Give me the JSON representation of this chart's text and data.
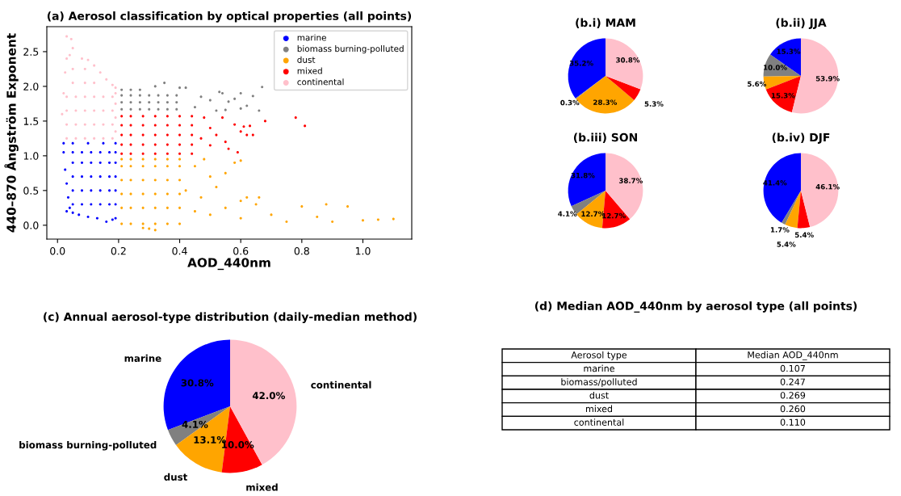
{
  "chart_data": [
    {
      "type": "scatter",
      "title": "(a) Aerosol classification by optical properties (all points)",
      "xlabel": "AOD_440nm",
      "ylabel": "440–870 Ångström Exponent",
      "xlim": [
        -0.035,
        1.16
      ],
      "ylim": [
        -0.2,
        2.86
      ],
      "xticks": [
        {
          "value": 0,
          "label": "0.0"
        },
        0.2,
        0.4,
        0.6,
        0.8,
        {
          "value": 1,
          "label": "1.0"
        }
      ],
      "yticks": [
        {
          "value": 0,
          "label": "0.0"
        },
        0.5,
        {
          "value": 1,
          "label": "1.0"
        },
        1.5,
        {
          "value": 2,
          "label": "2.0"
        },
        2.5
      ],
      "legend": "top right",
      "marker": "circle",
      "grid": false,
      "series": [
        {
          "name": "marine",
          "color": "#0000ff",
          "x": [
            0.03,
            0.05,
            0.07,
            0.1,
            0.13,
            0.16,
            0.18,
            0.19,
            0.02,
            0.025,
            0.03,
            0.035,
            0.04,
            0.02,
            0.05,
            0.1,
            0.15,
            0.19,
            0.05,
            0.05,
            0.05,
            0.05,
            0.05,
            0.08,
            0.08,
            0.08,
            0.08,
            0.08,
            0.11,
            0.11,
            0.11,
            0.11,
            0.11,
            0.14,
            0.14,
            0.14,
            0.14,
            0.14,
            0.17,
            0.17,
            0.17,
            0.17,
            0.17,
            0.19,
            0.19,
            0.19,
            0.19,
            0.19
          ],
          "values": [
            0.2,
            0.18,
            0.15,
            0.12,
            0.1,
            0.05,
            0.08,
            0.1,
            1.05,
            0.8,
            0.6,
            0.4,
            0.25,
            1.18,
            1.18,
            1.18,
            1.18,
            1.18,
            0.3,
            0.5,
            0.7,
            0.9,
            1.05,
            0.3,
            0.5,
            0.7,
            0.9,
            1.05,
            0.3,
            0.5,
            0.7,
            0.9,
            1.05,
            0.3,
            0.5,
            0.7,
            0.9,
            1.05,
            0.3,
            0.5,
            0.7,
            0.9,
            1.05,
            0.3,
            0.5,
            0.7,
            0.9,
            1.05
          ]
        },
        {
          "name": "biomass burning-polluted",
          "color": "#808080",
          "x": [
            0.35,
            0.32,
            0.4,
            0.42,
            0.47,
            0.5,
            0.53,
            0.54,
            0.56,
            0.58,
            0.6,
            0.62,
            0.64,
            0.66,
            0.67,
            0.6,
            0.55,
            0.45,
            0.52,
            0.21,
            0.21,
            0.21,
            0.21,
            0.24,
            0.24,
            0.24,
            0.24,
            0.27,
            0.27,
            0.27,
            0.27,
            0.3,
            0.3,
            0.3,
            0.33,
            0.33,
            0.33,
            0.36,
            0.36,
            0.36,
            0.39,
            0.39,
            0.39
          ],
          "values": [
            2.05,
            2.0,
            1.98,
            1.98,
            1.85,
            1.8,
            1.92,
            1.9,
            1.78,
            1.82,
            1.9,
            1.72,
            1.86,
            1.65,
            1.99,
            1.68,
            1.66,
            1.7,
            1.65,
            1.67,
            1.77,
            1.87,
            1.95,
            1.67,
            1.77,
            1.87,
            1.95,
            1.67,
            1.77,
            1.87,
            1.95,
            1.67,
            1.77,
            1.87,
            1.67,
            1.77,
            1.87,
            1.67,
            1.77,
            1.87,
            1.67,
            1.77,
            1.87
          ]
        },
        {
          "name": "dust",
          "color": "#ffa500",
          "x": [
            0.21,
            0.21,
            0.21,
            0.21,
            0.21,
            0.21,
            0.24,
            0.24,
            0.24,
            0.24,
            0.24,
            0.24,
            0.28,
            0.28,
            0.28,
            0.28,
            0.28,
            0.28,
            0.32,
            0.32,
            0.32,
            0.32,
            0.32,
            0.32,
            0.36,
            0.36,
            0.36,
            0.36,
            0.36,
            0.36,
            0.4,
            0.4,
            0.4,
            0.4,
            0.4,
            0.4,
            0.45,
            0.5,
            0.55,
            0.6,
            0.65,
            0.7,
            0.75,
            0.8,
            0.85,
            0.88,
            0.9,
            0.95,
            1.0,
            1.05,
            1.1,
            0.42,
            0.45,
            0.5,
            0.52,
            0.55,
            0.6,
            0.62,
            0.66,
            0.3,
            0.32,
            0.28,
            0.47,
            0.58,
            0.48,
            0.6
          ],
          "values": [
            0.02,
            0.25,
            0.45,
            0.65,
            0.85,
            0.95,
            0.02,
            0.25,
            0.45,
            0.65,
            0.85,
            0.95,
            0.02,
            0.25,
            0.45,
            0.65,
            0.85,
            0.95,
            0.02,
            0.25,
            0.45,
            0.65,
            0.85,
            0.95,
            0.02,
            0.25,
            0.45,
            0.65,
            0.85,
            0.95,
            0.02,
            0.25,
            0.45,
            0.65,
            0.85,
            0.95,
            0.2,
            0.15,
            0.25,
            0.1,
            0.3,
            0.15,
            0.05,
            0.27,
            0.12,
            0.3,
            0.05,
            0.27,
            0.07,
            0.08,
            0.09,
            0.5,
            0.85,
            0.7,
            0.55,
            0.75,
            0.35,
            0.4,
            0.4,
            -0.05,
            -0.07,
            -0.04,
            0.4,
            0.9,
            0.95,
            0.93
          ]
        },
        {
          "name": "mixed",
          "color": "#ff0000",
          "x": [
            0.21,
            0.21,
            0.21,
            0.21,
            0.21,
            0.24,
            0.24,
            0.24,
            0.24,
            0.24,
            0.28,
            0.28,
            0.28,
            0.28,
            0.28,
            0.32,
            0.32,
            0.32,
            0.32,
            0.32,
            0.36,
            0.36,
            0.36,
            0.36,
            0.36,
            0.4,
            0.4,
            0.4,
            0.4,
            0.4,
            0.44,
            0.44,
            0.44,
            0.44,
            0.44,
            0.48,
            0.5,
            0.52,
            0.54,
            0.55,
            0.56,
            0.58,
            0.59,
            0.6,
            0.61,
            0.63,
            0.62,
            0.64,
            0.68,
            0.78,
            0.81,
            0.5,
            0.47
          ],
          "values": [
            1.03,
            1.16,
            1.3,
            1.44,
            1.57,
            1.03,
            1.16,
            1.3,
            1.44,
            1.57,
            1.03,
            1.16,
            1.3,
            1.44,
            1.57,
            1.03,
            1.16,
            1.3,
            1.44,
            1.57,
            1.03,
            1.16,
            1.3,
            1.44,
            1.57,
            1.03,
            1.16,
            1.3,
            1.44,
            1.57,
            1.03,
            1.16,
            1.3,
            1.44,
            1.57,
            1.55,
            1.4,
            1.3,
            1.55,
            1.2,
            1.1,
            1.45,
            1.05,
            1.35,
            1.42,
            1.43,
            1.3,
            1.3,
            1.5,
            1.55,
            1.43,
            1.15,
            1.25
          ]
        },
        {
          "name": "continental",
          "color": "#ffc0cb",
          "x": [
            0.03,
            0.045,
            0.05,
            0.04,
            0.08,
            0.1,
            0.12,
            0.14,
            0.16,
            0.18,
            0.19,
            0.015,
            0.02,
            0.025,
            0.03,
            0.03,
            0.03,
            0.03,
            0.03,
            0.06,
            0.06,
            0.06,
            0.06,
            0.09,
            0.09,
            0.09,
            0.09,
            0.12,
            0.12,
            0.12,
            0.12,
            0.15,
            0.15,
            0.15,
            0.15,
            0.18,
            0.18,
            0.18,
            0.18,
            0.19,
            0.19,
            0.19,
            0.19,
            0.05,
            0.09,
            0.12,
            0.05,
            0.09
          ],
          "values": [
            2.72,
            2.68,
            2.55,
            2.45,
            2.4,
            2.38,
            2.3,
            2.2,
            2.1,
            2.02,
            1.98,
            1.6,
            1.9,
            2.2,
            2.4,
            1.25,
            1.45,
            1.65,
            1.85,
            1.25,
            1.45,
            1.65,
            1.85,
            1.25,
            1.45,
            1.65,
            1.85,
            1.25,
            1.45,
            1.65,
            1.85,
            1.25,
            1.45,
            1.65,
            1.85,
            1.25,
            1.45,
            1.65,
            1.85,
            1.35,
            1.55,
            1.75,
            1.9,
            2.05,
            2.05,
            2.05,
            2.25,
            2.25
          ]
        }
      ]
    },
    {
      "type": "pie",
      "title": "(b.i) MAM",
      "categories": [
        null,
        null,
        null,
        null,
        null
      ],
      "values": [
        35.2,
        0.3,
        28.3,
        5.3,
        30.8
      ],
      "colors": [
        "#0000ff",
        "#808080",
        "#ffa500",
        "#ff0000",
        "#ffc0cb"
      ],
      "value_labels": [
        "35.2%",
        "0.3%",
        "28.3%",
        "5.3%",
        "30.8%"
      ]
    },
    {
      "type": "pie",
      "title": "(b.ii) JJA",
      "categories": [
        null,
        null,
        null,
        null,
        null
      ],
      "values": [
        15.3,
        10.0,
        5.6,
        15.3,
        53.9
      ],
      "colors": [
        "#0000ff",
        "#808080",
        "#ffa500",
        "#ff0000",
        "#ffc0cb"
      ],
      "value_labels": [
        "15.3%",
        "10.0%",
        "5.6%",
        "15.3%",
        "53.9%"
      ]
    },
    {
      "type": "pie",
      "title": "(b.iii) SON",
      "categories": [
        null,
        null,
        null,
        null,
        null
      ],
      "values": [
        31.8,
        4.1,
        12.7,
        12.7,
        38.7
      ],
      "colors": [
        "#0000ff",
        "#808080",
        "#ffa500",
        "#ff0000",
        "#ffc0cb"
      ],
      "value_labels": [
        "31.8%",
        "4.1%",
        "12.7%",
        "12.7%",
        "38.7%"
      ]
    },
    {
      "type": "pie",
      "title": "(b.iv) DJF",
      "categories": [
        null,
        null,
        null,
        null,
        null
      ],
      "values": [
        41.4,
        1.7,
        5.4,
        5.4,
        46.1
      ],
      "colors": [
        "#0000ff",
        "#808080",
        "#ffa500",
        "#ff0000",
        "#ffc0cb"
      ],
      "value_labels": [
        "41.4%",
        "1.7%",
        "5.4%",
        "5.4%",
        "46.1%"
      ]
    },
    {
      "type": "pie",
      "title": "(c) Annual aerosol-type distribution (daily-median method)",
      "categories": [
        "marine",
        "biomass burning-polluted",
        "dust",
        "mixed",
        "continental"
      ],
      "values": [
        30.8,
        4.1,
        13.1,
        10.0,
        42.0
      ],
      "colors": [
        "#0000ff",
        "#808080",
        "#ffa500",
        "#ff0000",
        "#ffc0cb"
      ],
      "value_labels": [
        "30.8%",
        "4.1%",
        "13.1%",
        "10.0%",
        "42.0%"
      ]
    },
    {
      "type": "other",
      "title": "(d) Median AOD_440nm by aerosol type (all points)",
      "xlabel": "Aerosol type",
      "ylabel": "Median AOD_440nm",
      "categories": [
        "marine",
        "biomass/polluted",
        "dust",
        "mixed",
        "continental"
      ],
      "value_labels": [
        "0.107",
        "0.247",
        "0.269",
        "0.260",
        "0.110"
      ]
    }
  ]
}
